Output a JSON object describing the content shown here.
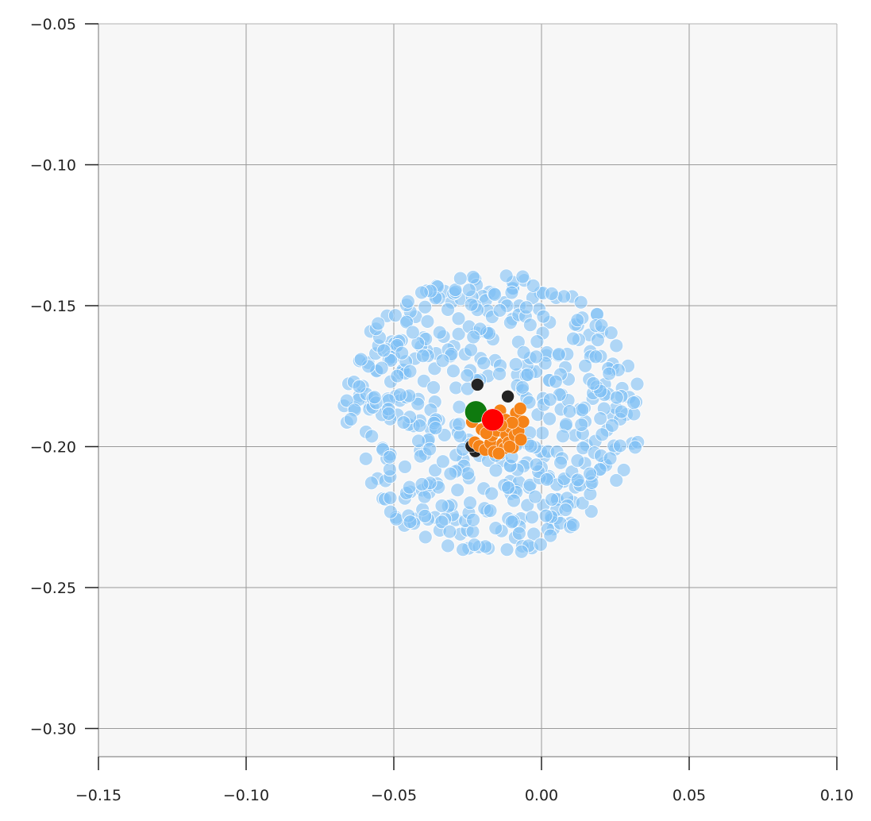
{
  "chart_data": {
    "type": "scatter",
    "title": "",
    "xlabel": "",
    "ylabel": "",
    "xlim": [
      -0.15,
      0.1
    ],
    "ylim": [
      -0.31,
      -0.05
    ],
    "x_ticks": [
      -0.15,
      -0.1,
      -0.05,
      0.0,
      0.05,
      0.1
    ],
    "x_tick_labels": [
      "−0.15",
      "−0.10",
      "−0.05",
      "0.00",
      "0.05",
      "0.10"
    ],
    "y_ticks": [
      -0.05,
      -0.1,
      -0.15,
      -0.2,
      -0.25,
      -0.3
    ],
    "y_tick_labels": [
      "−0.05",
      "−0.10",
      "−0.15",
      "−0.20",
      "−0.25",
      "−0.30"
    ],
    "grid": true,
    "legend": "none",
    "plot_background": "#f7f7f7",
    "grid_color": "#9a9a9a",
    "series": [
      {
        "color": "#7fbff5",
        "marker": "circle",
        "alpha": 0.6,
        "distribution": "disk",
        "center": [
          -0.0165,
          -0.1878
        ],
        "radius": 0.0505,
        "count": 520
      },
      {
        "color": "#232323",
        "marker": "circle",
        "points": [
          [
            -0.0217,
            -0.178
          ],
          [
            -0.0114,
            -0.1822
          ],
          [
            -0.0224,
            -0.2016
          ],
          [
            -0.0237,
            -0.1998
          ],
          [
            -0.0076,
            -0.1925
          ],
          [
            -0.0136,
            -0.1944
          ]
        ]
      },
      {
        "color": "#f58318",
        "marker": "circle",
        "points": [
          [
            -0.0235,
            -0.1912
          ],
          [
            -0.0226,
            -0.1985
          ],
          [
            -0.0211,
            -0.1998
          ],
          [
            -0.0191,
            -0.2011
          ],
          [
            -0.0173,
            -0.1987
          ],
          [
            -0.0167,
            -0.196
          ],
          [
            -0.0161,
            -0.2018
          ],
          [
            -0.0151,
            -0.1943
          ],
          [
            -0.014,
            -0.1872
          ],
          [
            -0.0132,
            -0.199
          ],
          [
            -0.0125,
            -0.2005
          ],
          [
            -0.0119,
            -0.1958
          ],
          [
            -0.0111,
            -0.1985
          ],
          [
            -0.0105,
            -0.1932
          ],
          [
            -0.0097,
            -0.2003
          ],
          [
            -0.0091,
            -0.196
          ],
          [
            -0.0086,
            -0.1881
          ],
          [
            -0.0078,
            -0.1945
          ],
          [
            -0.007,
            -0.1975
          ],
          [
            -0.0072,
            -0.1865
          ],
          [
            -0.0062,
            -0.1912
          ],
          [
            -0.0181,
            -0.1893
          ],
          [
            -0.0202,
            -0.1939
          ],
          [
            -0.0145,
            -0.2024
          ],
          [
            -0.0108,
            -0.2
          ],
          [
            -0.0158,
            -0.1895
          ],
          [
            -0.0121,
            -0.1905
          ],
          [
            -0.0187,
            -0.1952
          ],
          [
            -0.0099,
            -0.1915
          ],
          [
            -0.0136,
            -0.1925
          ]
        ]
      },
      {
        "color": "#0f7a0f",
        "marker": "circle",
        "points": [
          [
            -0.0222,
            -0.1877
          ]
        ]
      },
      {
        "color": "#ff0000",
        "marker": "circle",
        "points": [
          [
            -0.0165,
            -0.1905
          ]
        ]
      }
    ]
  }
}
